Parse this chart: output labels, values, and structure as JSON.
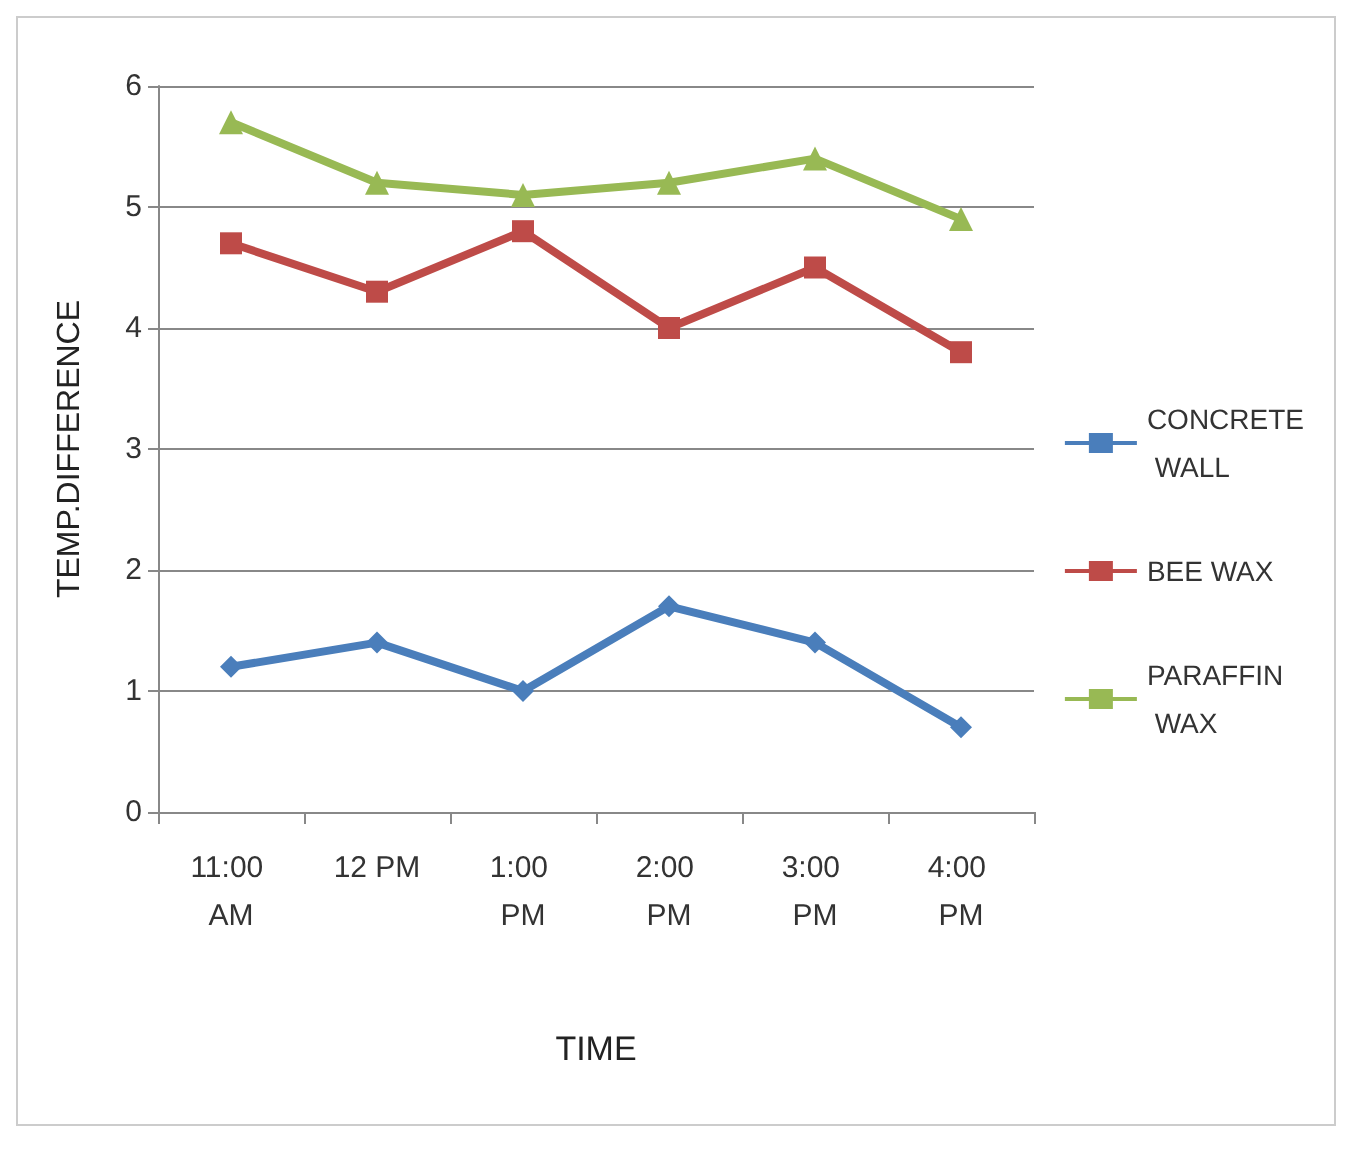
{
  "chart_data": {
    "type": "line",
    "xlabel": "TIME",
    "ylabel": "TEMP.DIFFERENCE",
    "categories": [
      "11:00 AM",
      "12 PM",
      "1:00 PM",
      "2:00 PM",
      "3:00 PM",
      "4:00 PM"
    ],
    "series": [
      {
        "name": "CONCRETE WALL",
        "color": "#4a7ebb",
        "marker": "diamond",
        "values": [
          1.2,
          1.4,
          1.0,
          1.7,
          1.4,
          0.7
        ]
      },
      {
        "name": "BEE WAX",
        "color": "#be4b48",
        "marker": "square",
        "values": [
          4.7,
          4.3,
          4.8,
          4.0,
          4.5,
          3.8
        ]
      },
      {
        "name": "PARAFFIN WAX",
        "color": "#98b954",
        "marker": "triangle",
        "values": [
          5.7,
          5.2,
          5.1,
          5.2,
          5.4,
          4.9
        ]
      }
    ],
    "ylim": [
      0,
      6
    ],
    "yticks": [
      0,
      1,
      2,
      3,
      4,
      5,
      6
    ],
    "grid": "y",
    "legend": "right",
    "line_style": "solid"
  }
}
